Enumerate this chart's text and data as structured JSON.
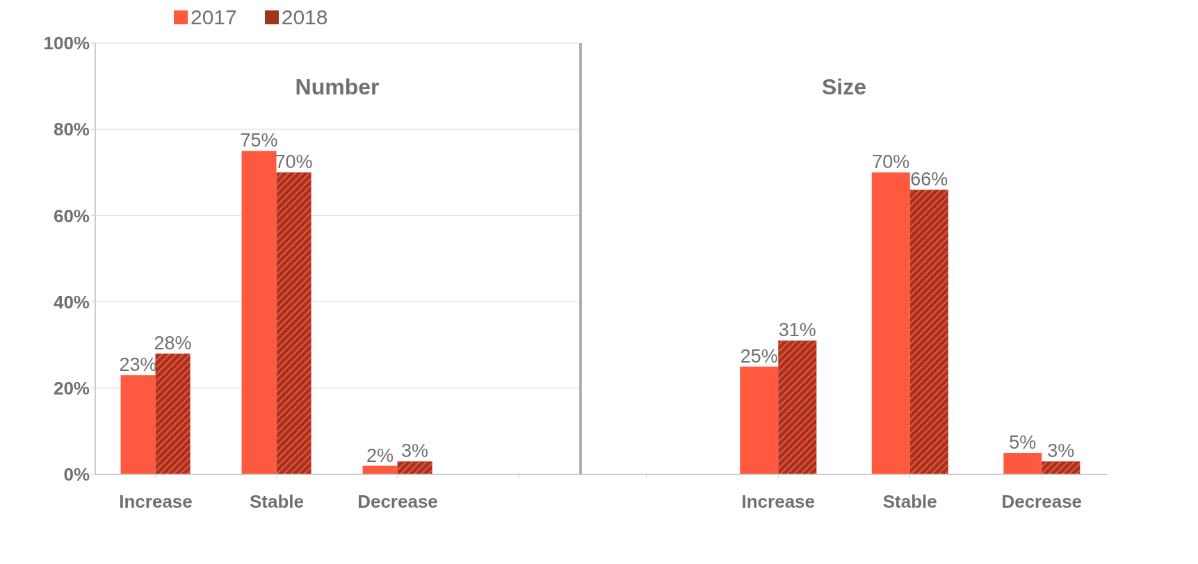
{
  "chart_data": [
    {
      "type": "bar",
      "annotations": [
        "Number"
      ],
      "categories": [
        "Increase",
        "Stable",
        "Decrease",
        null
      ],
      "series": [
        {
          "name": "2017",
          "color": "#ff5a40",
          "values": [
            23,
            75,
            2,
            null
          ],
          "value_labels": [
            "23%",
            "75%",
            "2%",
            null
          ]
        },
        {
          "name": "2018",
          "color": "#a3321f",
          "values": [
            28,
            70,
            3,
            null
          ],
          "value_labels": [
            "28%",
            "70%",
            "3%",
            null
          ]
        }
      ],
      "ylim": [
        0,
        100
      ],
      "yticks": [
        {
          "value": 0,
          "label": "0%"
        },
        {
          "value": 20,
          "label": "20%"
        },
        {
          "value": 40,
          "label": "40%"
        },
        {
          "value": 60,
          "label": "60%"
        },
        {
          "value": 80,
          "label": "80%"
        },
        {
          "value": 100,
          "label": "100%"
        }
      ],
      "grid": "y",
      "legend": "top"
    },
    {
      "type": "bar",
      "annotations": [
        "Size"
      ],
      "categories": [
        null,
        "Increase",
        "Stable",
        "Decrease"
      ],
      "series": [
        {
          "color": "#ff5a40",
          "values": [
            null,
            25,
            70,
            5
          ],
          "value_labels": [
            null,
            "25%",
            "70%",
            "5%"
          ]
        },
        {
          "color": "#a3321f",
          "values": [
            null,
            31,
            66,
            3
          ],
          "value_labels": [
            null,
            "31%",
            "66%",
            "3%"
          ]
        }
      ],
      "ylim": [
        0,
        100
      ],
      "grid": "y",
      "tick_labels": "x"
    }
  ]
}
